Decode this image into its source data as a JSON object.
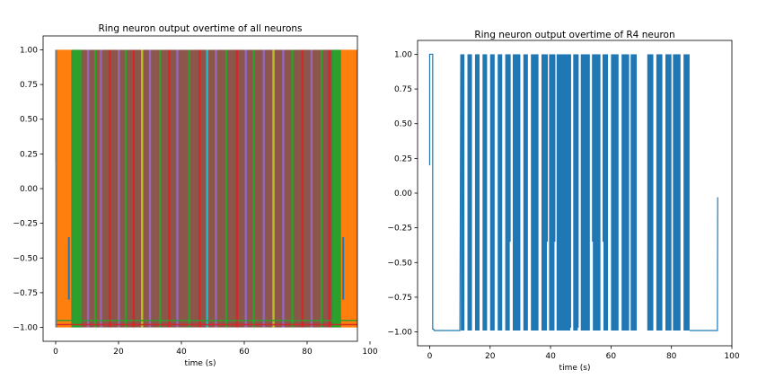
{
  "chart_data": [
    {
      "type": "line",
      "title": "Ring neuron output overtime of all neurons",
      "xlabel": "time (s)",
      "ylabel": "",
      "xlim": [
        -4,
        96
      ],
      "ylim": [
        -1.1,
        1.1
      ],
      "xticks": [
        0,
        20,
        40,
        60,
        80,
        100
      ],
      "yticks": [
        -1.0,
        -0.75,
        -0.5,
        -0.25,
        0.0,
        0.25,
        0.5,
        0.75,
        1.0
      ],
      "ytick_labels": [
        "−1.00",
        "−0.75",
        "−0.50",
        "−0.25",
        "0.00",
        "0.25",
        "0.50",
        "0.75",
        "1.00"
      ],
      "grid": false,
      "legend": "none",
      "background_fill": {
        "from": 0.2,
        "to": 96,
        "color": "#8c564b"
      },
      "wide_blocks": [
        {
          "from": 0.3,
          "to": 5.0,
          "color": "#ff7f0e"
        },
        {
          "from": 5.2,
          "to": 8.2,
          "color": "#2ca02c"
        },
        {
          "from": 88.0,
          "to": 90.8,
          "color": "#2ca02c"
        },
        {
          "from": 90.8,
          "to": 96.0,
          "color": "#ff7f0e"
        }
      ],
      "spikes": [
        {
          "x": 0.2,
          "color": "#7f7f7f"
        },
        {
          "x": 10.3,
          "color": "#9467bd"
        },
        {
          "x": 12.6,
          "color": "#2ca02c"
        },
        {
          "x": 14.4,
          "color": "#9467bd"
        },
        {
          "x": 17.2,
          "color": "#d62728"
        },
        {
          "x": 20.1,
          "color": "#9467bd"
        },
        {
          "x": 22.3,
          "color": "#2ca02c"
        },
        {
          "x": 24.8,
          "color": "#d62728"
        },
        {
          "x": 27.5,
          "color": "#bcbd22"
        },
        {
          "x": 30.0,
          "color": "#9467bd"
        },
        {
          "x": 33.2,
          "color": "#2ca02c"
        },
        {
          "x": 36.1,
          "color": "#d62728"
        },
        {
          "x": 38.7,
          "color": "#9467bd"
        },
        {
          "x": 42.5,
          "color": "#2ca02c"
        },
        {
          "x": 45.8,
          "color": "#d62728"
        },
        {
          "x": 48.2,
          "color": "#17becf"
        },
        {
          "x": 51.0,
          "color": "#9467bd"
        },
        {
          "x": 54.3,
          "color": "#2ca02c"
        },
        {
          "x": 57.7,
          "color": "#d62728"
        },
        {
          "x": 60.5,
          "color": "#9467bd"
        },
        {
          "x": 63.0,
          "color": "#2ca02c"
        },
        {
          "x": 66.2,
          "color": "#9467bd"
        },
        {
          "x": 69.3,
          "color": "#bcbd22"
        },
        {
          "x": 72.4,
          "color": "#9467bd"
        },
        {
          "x": 75.3,
          "color": "#2ca02c"
        },
        {
          "x": 78.5,
          "color": "#d62728"
        },
        {
          "x": 81.4,
          "color": "#9467bd"
        },
        {
          "x": 84.6,
          "color": "#2ca02c"
        },
        {
          "x": 87.1,
          "color": "#d62728"
        }
      ],
      "low_traces": [
        {
          "from": 0.3,
          "to": 96,
          "y": -0.95,
          "color": "#2ca02c"
        },
        {
          "from": 0.3,
          "to": 96,
          "y": -0.98,
          "color": "#d62728"
        }
      ],
      "short_segments": [
        {
          "x": 4.2,
          "y0": -0.35,
          "y1": -0.8,
          "color": "#1f77b4"
        },
        {
          "x": 91.5,
          "y0": -0.35,
          "y1": -0.8,
          "color": "#1f77b4"
        }
      ]
    },
    {
      "type": "line",
      "title": "Ring neuron output overtime of R4 neuron",
      "xlabel": "time (s)",
      "ylabel": "",
      "xlim": [
        -4,
        100
      ],
      "ylim": [
        -1.1,
        1.1
      ],
      "xticks": [
        0,
        20,
        40,
        60,
        80,
        100
      ],
      "yticks": [
        -1.0,
        -0.75,
        -0.5,
        -0.25,
        0.0,
        0.25,
        0.5,
        0.75,
        1.0
      ],
      "ytick_labels": [
        "−1.00",
        "−0.75",
        "−0.50",
        "−0.25",
        "0.00",
        "0.25",
        "0.50",
        "0.75",
        "1.00"
      ],
      "grid": false,
      "legend": "none",
      "color": "#1f77b4",
      "x": [
        0,
        0,
        0.3,
        0.3,
        1.0,
        1.0,
        1.3,
        1.5,
        10,
        10.3
      ],
      "y": [
        0.2,
        1.0,
        1.0,
        1.0,
        1.0,
        -0.98,
        -0.98,
        -0.99,
        -0.99,
        1.0
      ],
      "blocks": [
        {
          "from": 10.3,
          "to": 11.5
        },
        {
          "from": 12.5,
          "to": 14.0
        },
        {
          "from": 15.0,
          "to": 16.5
        },
        {
          "from": 17.5,
          "to": 19.0
        },
        {
          "from": 20.0,
          "to": 21.5
        },
        {
          "from": 22.5,
          "to": 24.0
        },
        {
          "from": 25.0,
          "to": 26.5
        },
        {
          "from": 27.5,
          "to": 30.0
        },
        {
          "from": 31.0,
          "to": 32.5
        },
        {
          "from": 33.5,
          "to": 36.0
        },
        {
          "from": 37.0,
          "to": 38.8
        },
        {
          "from": 39.5,
          "to": 41.3
        },
        {
          "from": 42.0,
          "to": 46.5
        },
        {
          "from": 47.5,
          "to": 49.0
        },
        {
          "from": 50.0,
          "to": 53.0
        },
        {
          "from": 54.0,
          "to": 56.5
        },
        {
          "from": 57.5,
          "to": 59.0
        },
        {
          "from": 60.0,
          "to": 62.5
        },
        {
          "from": 63.5,
          "to": 66.0
        },
        {
          "from": 66.5,
          "to": 68.5
        },
        {
          "from": 72.0,
          "to": 74.0
        },
        {
          "from": 75.0,
          "to": 77.0
        },
        {
          "from": 78.0,
          "to": 80.0
        },
        {
          "from": 80.5,
          "to": 83.0
        },
        {
          "from": 84.0,
          "to": 86.0
        }
      ],
      "dips": [
        {
          "x": 26.5,
          "y": -0.35
        },
        {
          "x": 38.8,
          "y": -0.35
        },
        {
          "x": 41.3,
          "y": -0.35
        },
        {
          "x": 46.5,
          "y": -0.97
        },
        {
          "x": 49.0,
          "y": -0.97
        },
        {
          "x": 54.0,
          "y": -0.35
        },
        {
          "x": 57.5,
          "y": -0.35
        }
      ],
      "tail": {
        "from": 86.0,
        "to": 95.2,
        "y": -0.99,
        "end_x": 95.3,
        "end_y": -0.03
      }
    }
  ]
}
